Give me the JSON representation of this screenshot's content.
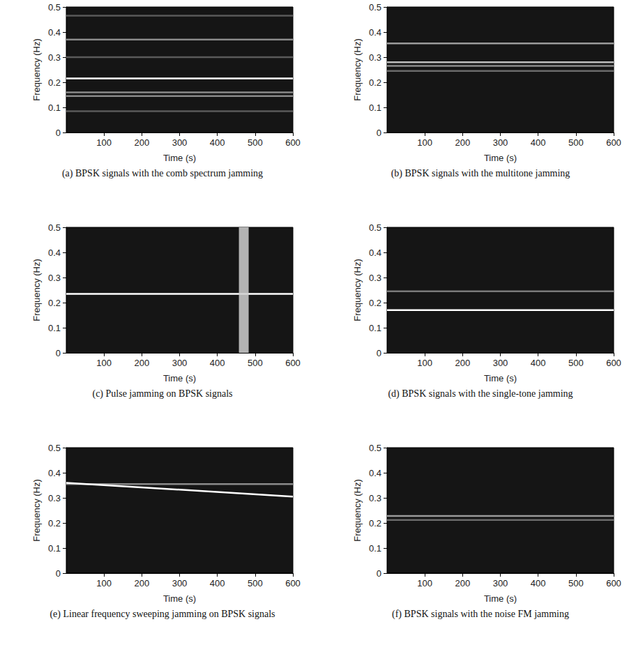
{
  "chart_data": [
    {
      "type": "line",
      "title": "(a) BPSK signals with the comb spectrum jamming",
      "xlabel": "Time (s)",
      "ylabel": "Frequency (Hz)",
      "xlim": [
        0,
        600
      ],
      "xticks": [
        100,
        200,
        300,
        400,
        500,
        600
      ],
      "ylim": [
        0,
        0.5
      ],
      "yticks": [
        0,
        0.1,
        0.2,
        0.3,
        0.4,
        0.5
      ],
      "grid": false,
      "series": [
        {
          "color": "#5a5a5a",
          "x": [
            0,
            600
          ],
          "values": [
            0.465,
            0.465
          ]
        },
        {
          "color": "#8a8a8a",
          "x": [
            0,
            600
          ],
          "values": [
            0.37,
            0.37
          ]
        },
        {
          "color": "#5a5a5a",
          "x": [
            0,
            600
          ],
          "values": [
            0.3,
            0.3
          ]
        },
        {
          "color": "#ffffff",
          "x": [
            0,
            600
          ],
          "values": [
            0.215,
            0.215
          ]
        },
        {
          "color": "#8a8a8a",
          "x": [
            0,
            600
          ],
          "values": [
            0.16,
            0.16
          ]
        },
        {
          "color": "#8a8a8a",
          "x": [
            0,
            600
          ],
          "values": [
            0.145,
            0.145
          ]
        },
        {
          "color": "#5a5a5a",
          "x": [
            0,
            600
          ],
          "values": [
            0.085,
            0.085
          ]
        }
      ]
    },
    {
      "type": "line",
      "title": "(b) BPSK signals with the multitone jamming",
      "xlabel": "Time (s)",
      "ylabel": "Frequency (Hz)",
      "xlim": [
        0,
        600
      ],
      "xticks": [
        100,
        200,
        300,
        400,
        500,
        600
      ],
      "ylim": [
        0,
        0.5
      ],
      "yticks": [
        0,
        0.1,
        0.2,
        0.3,
        0.4,
        0.5
      ],
      "grid": false,
      "series": [
        {
          "color": "#9a9a9a",
          "x": [
            0,
            600
          ],
          "values": [
            0.355,
            0.355
          ]
        },
        {
          "color": "#bdbdbd",
          "x": [
            0,
            600
          ],
          "values": [
            0.28,
            0.28
          ]
        },
        {
          "color": "#8a8a8a",
          "x": [
            0,
            600
          ],
          "values": [
            0.265,
            0.265
          ]
        },
        {
          "color": "#6a6a6a",
          "x": [
            0,
            600
          ],
          "values": [
            0.245,
            0.245
          ]
        }
      ]
    },
    {
      "type": "line",
      "title": "(c) Pulse jamming on BPSK signals",
      "xlabel": "Time (s)",
      "ylabel": "Frequency (Hz)",
      "xlim": [
        0,
        600
      ],
      "xticks": [
        100,
        200,
        300,
        400,
        500,
        600
      ],
      "ylim": [
        0,
        0.5
      ],
      "yticks": [
        0,
        0.1,
        0.2,
        0.3,
        0.4,
        0.5
      ],
      "grid": false,
      "series": [
        {
          "color": "#ffffff",
          "x": [
            0,
            600
          ],
          "values": [
            0.235,
            0.235
          ]
        },
        {
          "color": "#cfcfcf",
          "line_style": "band",
          "x": [
            470,
            470
          ],
          "values": [
            0,
            0.5
          ]
        }
      ]
    },
    {
      "type": "line",
      "title": "(d) BPSK signals with the single-tone jamming",
      "xlabel": "Time (s)",
      "ylabel": "Frequency (Hz)",
      "xlim": [
        0,
        600
      ],
      "xticks": [
        100,
        200,
        300,
        400,
        500,
        600
      ],
      "ylim": [
        0,
        0.5
      ],
      "yticks": [
        0,
        0.1,
        0.2,
        0.3,
        0.4,
        0.5
      ],
      "grid": false,
      "series": [
        {
          "color": "#7a7a7a",
          "x": [
            0,
            600
          ],
          "values": [
            0.245,
            0.245
          ]
        },
        {
          "color": "#ffffff",
          "x": [
            0,
            600
          ],
          "values": [
            0.17,
            0.17
          ]
        }
      ]
    },
    {
      "type": "line",
      "title": "(e) Linear frequency sweeping jamming on BPSK signals",
      "xlabel": "Time (s)",
      "ylabel": "Frequency (Hz)",
      "xlim": [
        0,
        600
      ],
      "xticks": [
        100,
        200,
        300,
        400,
        500,
        600
      ],
      "ylim": [
        0,
        0.5
      ],
      "yticks": [
        0,
        0.1,
        0.2,
        0.3,
        0.4,
        0.5
      ],
      "grid": false,
      "series": [
        {
          "color": "#8a8a8a",
          "x": [
            0,
            600
          ],
          "values": [
            0.355,
            0.355
          ]
        },
        {
          "color": "#ffffff",
          "x": [
            0,
            600
          ],
          "values": [
            0.36,
            0.305
          ]
        }
      ]
    },
    {
      "type": "line",
      "title": "(f) BPSK signals with the noise FM jamming",
      "xlabel": "Time (s)",
      "ylabel": "Frequency (Hz)",
      "xlim": [
        0,
        600
      ],
      "xticks": [
        100,
        200,
        300,
        400,
        500,
        600
      ],
      "ylim": [
        0,
        0.5
      ],
      "yticks": [
        0,
        0.1,
        0.2,
        0.3,
        0.4,
        0.5
      ],
      "grid": false,
      "series": [
        {
          "color": "#9a9a9a",
          "x": [
            0,
            600
          ],
          "values": [
            0.228,
            0.228
          ]
        },
        {
          "color": "#6a6a6a",
          "x": [
            0,
            600
          ],
          "values": [
            0.212,
            0.212
          ]
        }
      ]
    }
  ]
}
